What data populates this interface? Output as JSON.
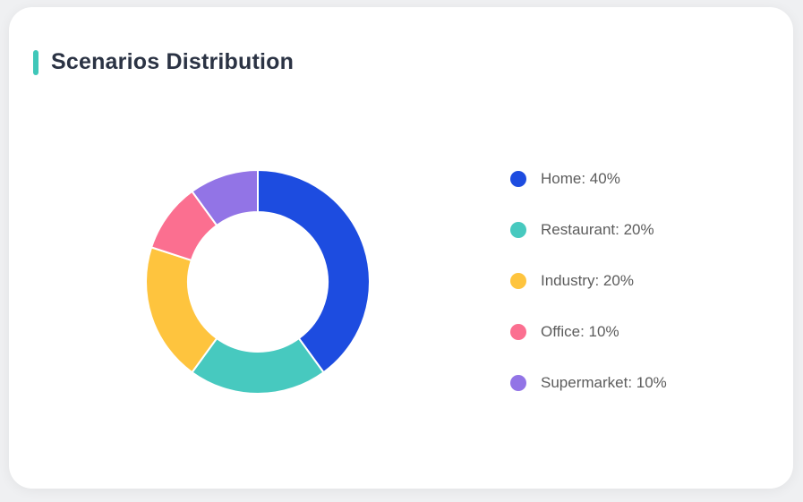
{
  "page": {
    "background_color": "#eff0f2"
  },
  "card": {
    "title": "Scenarios Distribution",
    "accent_color": "#3fc7b9",
    "title_color": "#2b3344",
    "background_color": "#ffffff"
  },
  "chart_data": {
    "type": "pie",
    "donut": true,
    "title": "Scenarios Distribution",
    "start_angle_deg": -90,
    "direction": "clockwise",
    "inner_radius_ratio": 0.62,
    "outer_radius_px": 125,
    "inner_radius_px": 78,
    "segment_border_color": "#ffffff",
    "legend_position": "right",
    "unit": "%",
    "categories": [
      "Home",
      "Restaurant",
      "Industry",
      "Office",
      "Supermarket"
    ],
    "values": [
      40,
      20,
      20,
      10,
      10
    ],
    "colors": [
      "#1d4ce0",
      "#47c9bf",
      "#fec43e",
      "#fb6f90",
      "#9274e6"
    ],
    "legend_labels": [
      "Home: 40%",
      "Restaurant: 20%",
      "Industry: 20%",
      "Office: 10%",
      "Supermarket: 10%"
    ]
  }
}
